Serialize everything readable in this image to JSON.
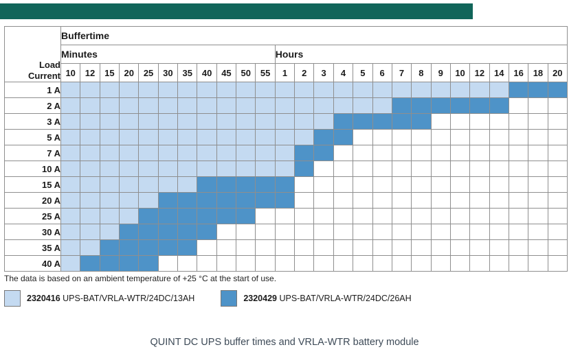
{
  "topbar": {
    "color": "#11655a"
  },
  "footnote": "The data is based on an ambient temperature of +25 °C at the start of use.",
  "legend": [
    {
      "code": "2320416",
      "label": "UPS-BAT/VRLA-WTR/24DC/13AH",
      "color": "#c4daf1"
    },
    {
      "code": "2320429",
      "label": "UPS-BAT/VRLA-WTR/24DC/26AH",
      "color": "#4e93c8"
    }
  ],
  "caption": "QUINT DC UPS buffer times and VRLA-WTR battery module",
  "colors": {
    "light": "#c4daf1",
    "dark": "#4e93c8",
    "grid": "#8e8e8e"
  },
  "chart_data": {
    "type": "heatmap",
    "title": "Buffertime",
    "corner_lines": [
      "Load",
      "Current"
    ],
    "y_label": "Load Current",
    "col_groups": [
      {
        "label": "Minutes",
        "ticks": [
          "10",
          "12",
          "15",
          "20",
          "25",
          "30",
          "35",
          "40",
          "45",
          "50",
          "55"
        ]
      },
      {
        "label": "Hours",
        "ticks": [
          "1",
          "2",
          "3",
          "4",
          "5",
          "6",
          "7",
          "8",
          "9",
          "10",
          "12",
          "14",
          "16",
          "18",
          "20"
        ]
      }
    ],
    "legend_mapping": {
      "L": "2320416 UPS-BAT/VRLA-WTR/24DC/13AH",
      "D": "2320429 UPS-BAT/VRLA-WTR/24DC/26AH",
      ".": "no buffer"
    },
    "rows": [
      {
        "label": "1 A",
        "cells": "LLLLLLLLLLLLLLLLLLLLLLLDDD"
      },
      {
        "label": "2 A",
        "cells": "LLLLLLLLLLLLLLLLLDDDDDD..."
      },
      {
        "label": "3 A",
        "cells": "LLLLLLLLLLLLLLDDDDD......."
      },
      {
        "label": "5 A",
        "cells": "LLLLLLLLLLLLLDD..........."
      },
      {
        "label": "7 A",
        "cells": "LLLLLLLLLLLLDD............"
      },
      {
        "label": "10 A",
        "cells": "LLLLLLLLLLLLD............."
      },
      {
        "label": "15 A",
        "cells": "LLLLLLLDDDDD.............."
      },
      {
        "label": "20 A",
        "cells": "LLLLLDDDDDDD.............."
      },
      {
        "label": "25 A",
        "cells": "LLLLDDDDDD................"
      },
      {
        "label": "30 A",
        "cells": "LLLDDDDD.................."
      },
      {
        "label": "35 A",
        "cells": "LLDDDDD..................."
      },
      {
        "label": "40 A",
        "cells": "LDDDD....................."
      }
    ]
  }
}
